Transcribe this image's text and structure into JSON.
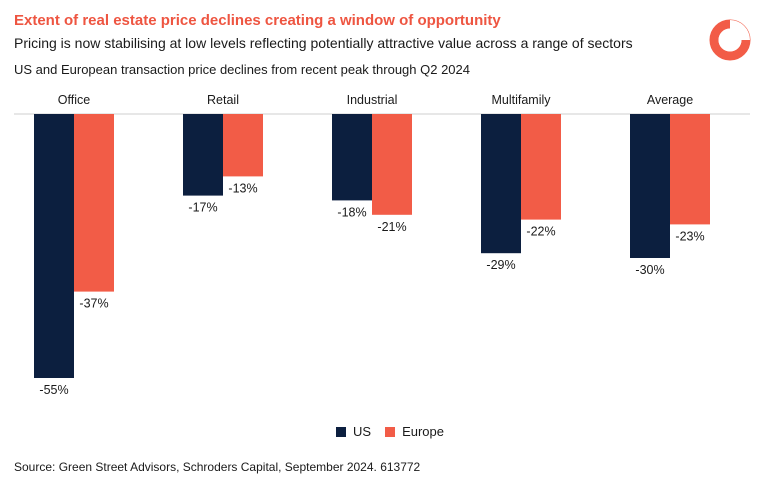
{
  "header": {
    "title": "Extent of real estate price declines creating a window of opportunity",
    "subtitle": "Pricing is now stabilising at low levels reflecting potentially attractive value across a range of sectors",
    "description": "US and European transaction price declines from recent peak through Q2 2024"
  },
  "footer": {
    "source": "Source: Green Street Advisors, Schroders Capital, September 2024. 613772"
  },
  "colors": {
    "us": "#0c1f3f",
    "europe": "#f25c47",
    "accent": "#ee5541"
  },
  "chart_data": {
    "type": "bar",
    "title": "US and European transaction price declines from recent peak through Q2 2024",
    "categories": [
      "Office",
      "Retail",
      "Industrial",
      "Multifamily",
      "Average"
    ],
    "series": [
      {
        "name": "US",
        "values": [
          -55,
          -17,
          -18,
          -29,
          -30
        ],
        "labels": [
          "-55%",
          "-17%",
          "-18%",
          "-29%",
          "-30%"
        ]
      },
      {
        "name": "Europe",
        "values": [
          -37,
          -13,
          -21,
          -22,
          -23
        ],
        "labels": [
          "-37%",
          "-13%",
          "-21%",
          "-22%",
          "-23%"
        ]
      }
    ],
    "ylim": [
      -60,
      0
    ],
    "xlabel": "",
    "ylabel": "",
    "legend": "bottom-center",
    "grid": false
  }
}
